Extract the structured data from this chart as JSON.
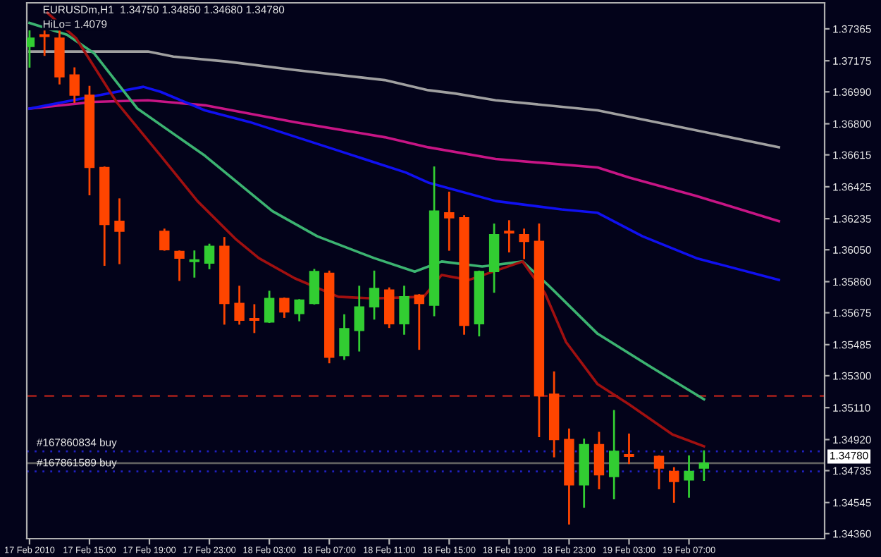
{
  "chart_data": {
    "type": "candlestick",
    "title": "EURUSDm,H1  1.34750 1.34850 1.34680 1.34780",
    "subtitle": "HiLo= 1.4079",
    "x": [
      "2010-02-17T11:00",
      "2010-02-17T12:00",
      "2010-02-17T13:00",
      "2010-02-17T14:00",
      "2010-02-17T15:00",
      "2010-02-17T16:00",
      "2010-02-17T17:00",
      "2010-02-17T20:00",
      "2010-02-17T21:00",
      "2010-02-17T22:00",
      "2010-02-17T23:00",
      "2010-02-18T00:00",
      "2010-02-18T01:00",
      "2010-02-18T02:00",
      "2010-02-18T03:00",
      "2010-02-18T04:00",
      "2010-02-18T05:00",
      "2010-02-18T06:00",
      "2010-02-18T07:00",
      "2010-02-18T08:00",
      "2010-02-18T09:00",
      "2010-02-18T10:00",
      "2010-02-18T11:00",
      "2010-02-18T12:00",
      "2010-02-18T13:00",
      "2010-02-18T14:00",
      "2010-02-18T15:00",
      "2010-02-18T16:00",
      "2010-02-18T17:00",
      "2010-02-18T18:00",
      "2010-02-18T19:00",
      "2010-02-18T20:00",
      "2010-02-18T21:00",
      "2010-02-18T22:00",
      "2010-02-18T23:00",
      "2010-02-19T00:00",
      "2010-02-19T01:00",
      "2010-02-19T02:00",
      "2010-02-19T03:00",
      "2010-02-19T05:00",
      "2010-02-19T06:00",
      "2010-02-19T07:00",
      "2010-02-19T08:00"
    ],
    "ohlc": [
      [
        1.3726,
        1.3735,
        1.3714,
        1.3731
      ],
      [
        1.3733,
        1.3737,
        1.3721,
        1.3732
      ],
      [
        1.3731,
        1.3735,
        1.3704,
        1.3708
      ],
      [
        1.3709,
        1.3713,
        1.3693,
        1.3697
      ],
      [
        1.3697,
        1.3702,
        1.3638,
        1.3654
      ],
      [
        1.3654,
        1.3654,
        1.3596,
        1.362
      ],
      [
        1.3622,
        1.3635,
        1.3597,
        1.3616
      ],
      [
        1.3616,
        1.3617,
        1.3605,
        1.3605
      ],
      [
        1.3604,
        1.3604,
        1.3587,
        1.36
      ],
      [
        1.3598,
        1.3604,
        1.3589,
        1.3599
      ],
      [
        1.3597,
        1.3608,
        1.3594,
        1.3607
      ],
      [
        1.3607,
        1.3612,
        1.3561,
        1.3573
      ],
      [
        1.3573,
        1.3583,
        1.3561,
        1.3563
      ],
      [
        1.3564,
        1.3572,
        1.3556,
        1.3563
      ],
      [
        1.3562,
        1.358,
        1.3562,
        1.3576
      ],
      [
        1.3576,
        1.3576,
        1.3565,
        1.3568
      ],
      [
        1.3567,
        1.3575,
        1.3563,
        1.3575
      ],
      [
        1.3573,
        1.3593,
        1.3573,
        1.3592
      ],
      [
        1.3591,
        1.3592,
        1.3538,
        1.3541
      ],
      [
        1.3542,
        1.3566,
        1.354,
        1.3558
      ],
      [
        1.3557,
        1.3583,
        1.3545,
        1.3571
      ],
      [
        1.3571,
        1.3592,
        1.3564,
        1.3582
      ],
      [
        1.3581,
        1.3582,
        1.3559,
        1.3561
      ],
      [
        1.3561,
        1.3583,
        1.3555,
        1.3577
      ],
      [
        1.3578,
        1.3578,
        1.3546,
        1.3573
      ],
      [
        1.3572,
        1.3654,
        1.3566,
        1.3628
      ],
      [
        1.3627,
        1.3639,
        1.3605,
        1.3624
      ],
      [
        1.3624,
        1.3625,
        1.3555,
        1.356
      ],
      [
        1.3561,
        1.3592,
        1.3554,
        1.3592
      ],
      [
        1.3592,
        1.362,
        1.358,
        1.3614
      ],
      [
        1.3616,
        1.3622,
        1.3604,
        1.3615
      ],
      [
        1.3614,
        1.3617,
        1.36,
        1.361
      ],
      [
        1.361,
        1.362,
        1.3494,
        1.3518
      ],
      [
        1.3519,
        1.3532,
        1.3482,
        1.3492
      ],
      [
        1.3492,
        1.3498,
        1.3442,
        1.3465
      ],
      [
        1.3465,
        1.3492,
        1.3452,
        1.3489
      ],
      [
        1.3489,
        1.3496,
        1.3463,
        1.3471
      ],
      [
        1.347,
        1.3509,
        1.3457,
        1.3485
      ],
      [
        1.3483,
        1.3495,
        1.3478,
        1.3482
      ],
      [
        1.3482,
        1.3482,
        1.3463,
        1.3475
      ],
      [
        1.3473,
        1.3475,
        1.3455,
        1.3467
      ],
      [
        1.3468,
        1.3482,
        1.3458,
        1.3473
      ],
      [
        1.3475,
        1.3485,
        1.3468,
        1.3478
      ]
    ],
    "colors": [
      "#32cd32",
      "#ff4500",
      "#ff4500",
      "#ff4500",
      "#ff4500",
      "#ff4500",
      "#ff4500",
      "#ff4500",
      "#ff4500",
      "#32cd32",
      "#32cd32",
      "#ff4500",
      "#ff4500",
      "#ff4500",
      "#32cd32",
      "#ff4500",
      "#32cd32",
      "#32cd32",
      "#ff4500",
      "#32cd32",
      "#32cd32",
      "#32cd32",
      "#ff4500",
      "#32cd32",
      "#ff4500",
      "#32cd32",
      "#ff4500",
      "#ff4500",
      "#32cd32",
      "#32cd32",
      "#ff4500",
      "#ff4500",
      "#ff4500",
      "#ff4500",
      "#ff4500",
      "#32cd32",
      "#ff4500",
      "#32cd32",
      "#ff4500",
      "#ff4500",
      "#ff4500",
      "#32cd32",
      "#32cd32"
    ],
    "series": [
      {
        "type": "line",
        "color": "#a0a0a0",
        "x": [
          "2010-02-17T11:00",
          "2010-02-17T18:54",
          "2010-02-17T20:36",
          "2010-02-18T00:12",
          "2010-02-18T04:42",
          "2010-02-18T10:42",
          "2010-02-18T13:36",
          "2010-02-18T15:24",
          "2010-02-18T18:06",
          "2010-02-19T00:54",
          "2010-02-19T05:54",
          "2010-02-19T13:00"
        ],
        "values": [
          1.3723,
          1.3723,
          1.372,
          1.3717,
          1.3712,
          1.3706,
          1.37,
          1.3698,
          1.3694,
          1.3688,
          1.3679,
          1.3666
        ]
      },
      {
        "type": "line",
        "color": "#c71585",
        "x": [
          "2010-02-17T11:00",
          "2010-02-17T15:18",
          "2010-02-17T18:54",
          "2010-02-17T22:42",
          "2010-02-18T04:42",
          "2010-02-18T10:42",
          "2010-02-18T13:36",
          "2010-02-18T18:06",
          "2010-02-19T00:54",
          "2010-02-19T03:00",
          "2010-02-19T07:30",
          "2010-02-19T13:00"
        ],
        "values": [
          1.3689,
          1.3693,
          1.3694,
          1.3691,
          1.3681,
          1.3672,
          1.3666,
          1.3659,
          1.3654,
          1.3648,
          1.3637,
          1.3622
        ]
      },
      {
        "type": "line",
        "color": "#1010f0",
        "x": [
          "2010-02-17T11:00",
          "2010-02-17T16:12",
          "2010-02-17T18:36",
          "2010-02-17T19:45",
          "2010-02-17T22:42",
          "2010-02-18T01:42",
          "2010-02-18T07:36",
          "2010-02-18T12:06",
          "2010-02-18T13:36",
          "2010-02-18T18:06",
          "2010-02-18T22:30",
          "2010-02-19T00:54",
          "2010-02-19T03:54",
          "2010-02-19T07:30",
          "2010-02-19T13:00"
        ],
        "values": [
          1.3689,
          1.3698,
          1.3702,
          1.3699,
          1.3688,
          1.3681,
          1.3664,
          1.3651,
          1.3645,
          1.3634,
          1.3629,
          1.3627,
          1.3613,
          1.36,
          1.3587
        ]
      },
      {
        "type": "line",
        "color": "#3cb371",
        "x": [
          "2010-02-17T11:00",
          "2010-02-17T13:30",
          "2010-02-17T15:18",
          "2010-02-17T18:12",
          "2010-02-17T22:42",
          "2010-02-18T03:12",
          "2010-02-18T06:12",
          "2010-02-18T10:00",
          "2010-02-18T12:42",
          "2010-02-18T14:30",
          "2010-02-18T17:12",
          "2010-02-18T19:54",
          "2010-02-18T21:36",
          "2010-02-19T00:54",
          "2010-02-19T04:30",
          "2010-02-19T08:00"
        ],
        "values": [
          1.374,
          1.3733,
          1.3722,
          1.3689,
          1.3661,
          1.3628,
          1.3613,
          1.36,
          1.3592,
          1.3598,
          1.3595,
          1.3598,
          1.3584,
          1.3555,
          1.3535,
          1.3516
        ]
      },
      {
        "type": "line",
        "color": "#a01010",
        "x": [
          "2010-02-17T12:12",
          "2010-02-17T14:06",
          "2010-02-17T16:48",
          "2010-02-17T19:45",
          "2010-02-17T22:12",
          "2010-02-18T00:48",
          "2010-02-18T02:18",
          "2010-02-18T04:42",
          "2010-02-18T07:36",
          "2010-02-18T10:00",
          "2010-02-18T13:18",
          "2010-02-18T14:30",
          "2010-02-18T16:18",
          "2010-02-18T19:54",
          "2010-02-18T21:24",
          "2010-02-18T22:48",
          "2010-02-19T00:54",
          "2010-02-19T03:00",
          "2010-02-19T05:54",
          "2010-02-19T08:00"
        ],
        "values": [
          1.3746,
          1.3731,
          1.3693,
          1.3661,
          1.3634,
          1.3611,
          1.36,
          1.3588,
          1.3577,
          1.3576,
          1.3577,
          1.359,
          1.3587,
          1.3598,
          1.3579,
          1.355,
          1.3525,
          1.3513,
          1.3495,
          1.3488
        ]
      }
    ],
    "ref_lines": [
      {
        "axis": "y",
        "value": 1.3518,
        "color": "#8b1a1a",
        "line_style": "dashed"
      },
      {
        "axis": "y",
        "value": 1.3485,
        "label": "#167860834 buy",
        "color": "#2020c0",
        "line_style": "dotted"
      },
      {
        "axis": "y",
        "value": 1.3478,
        "label": "1.34780",
        "color": "#606060",
        "line_style": "solid"
      },
      {
        "axis": "y",
        "value": 1.3473,
        "label": "#167861589 buy",
        "color": "#2020c0",
        "line_style": "dotted"
      }
    ],
    "xlim": [
      "2010-02-17T10:49",
      "2010-02-19T16:03"
    ],
    "xticks": [
      {
        "value": "2010-02-17T11:00",
        "label": "17 Feb 2010"
      },
      {
        "value": "2010-02-17T15:00",
        "label": "17 Feb 15:00"
      },
      {
        "value": "2010-02-17T19:00",
        "label": "17 Feb 19:00"
      },
      {
        "value": "2010-02-17T23:00",
        "label": "17 Feb 23:00"
      },
      {
        "value": "2010-02-18T03:00",
        "label": "18 Feb 03:00"
      },
      {
        "value": "2010-02-18T07:00",
        "label": "18 Feb 07:00"
      },
      {
        "value": "2010-02-18T11:00",
        "label": "18 Feb 11:00"
      },
      {
        "value": "2010-02-18T15:00",
        "label": "18 Feb 15:00"
      },
      {
        "value": "2010-02-18T19:00",
        "label": "18 Feb 19:00"
      },
      {
        "value": "2010-02-18T23:00",
        "label": "18 Feb 23:00"
      },
      {
        "value": "2010-02-19T03:00",
        "label": "19 Feb 03:00"
      },
      {
        "value": "2010-02-19T07:00",
        "label": "19 Feb 07:00"
      }
    ],
    "ylim": [
      1.3433,
      1.3752
    ],
    "yticks": [
      1.37365,
      1.37175,
      {
        "value": 1.3699,
        "label": "1.36990"
      },
      {
        "value": 1.368,
        "label": "1.36800"
      },
      1.36615,
      1.36425,
      1.36235,
      {
        "value": 1.3605,
        "label": "1.36050"
      },
      {
        "value": 1.3586,
        "label": "1.35860"
      },
      1.35675,
      1.35485,
      {
        "value": 1.353,
        "label": "1.35300"
      },
      {
        "value": 1.3511,
        "label": "1.35110"
      },
      {
        "value": 1.3492,
        "label": "1.34920"
      },
      1.34735,
      1.34545,
      {
        "value": 1.3436,
        "label": "1.34360"
      }
    ],
    "grid": false,
    "legend": false
  }
}
